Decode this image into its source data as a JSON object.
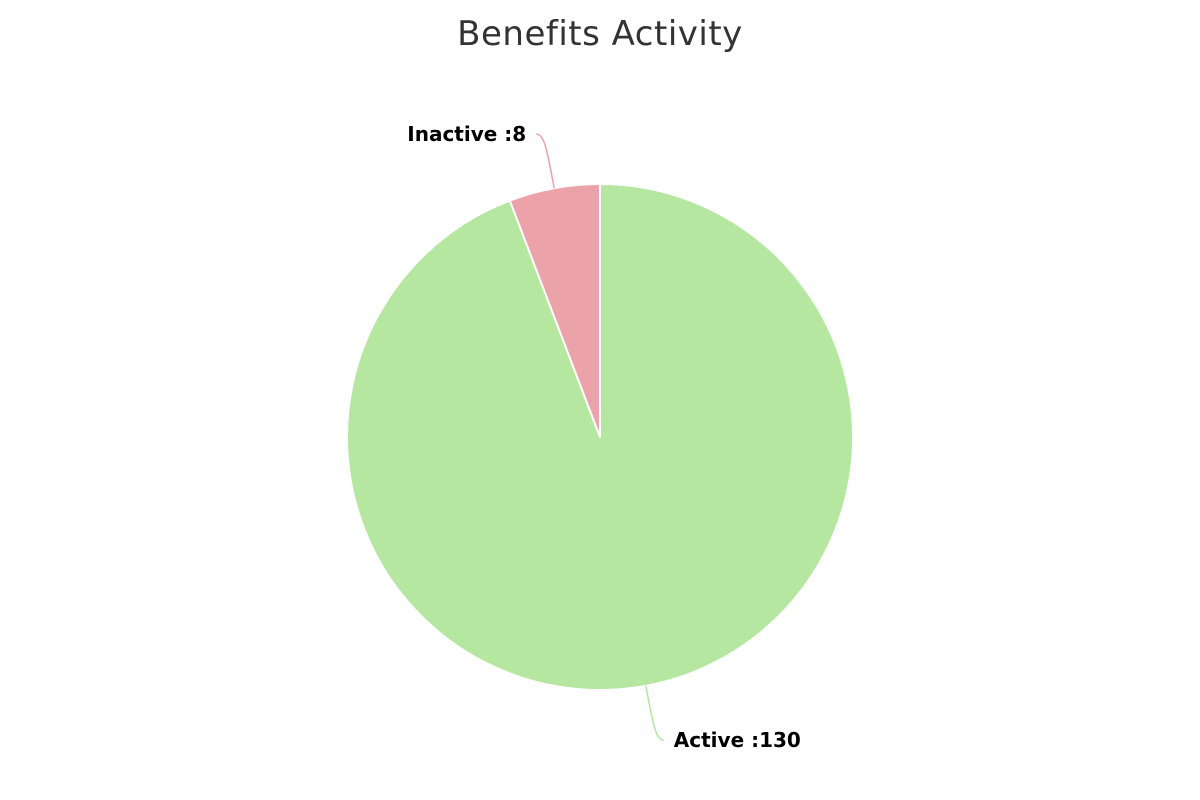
{
  "chart_data": {
    "type": "pie",
    "title": "Benefits Activity",
    "slices": [
      {
        "label": "Active",
        "value": 130,
        "color": "#b5e7a0",
        "data_label": "Active :130"
      },
      {
        "label": "Inactive",
        "value": 8,
        "color": "#eba2a8",
        "data_label": "Inactive :8"
      }
    ],
    "start_angle_deg": 0,
    "direction": "clockwise",
    "legend": "none",
    "data_labels": "outside-with-connectors"
  }
}
